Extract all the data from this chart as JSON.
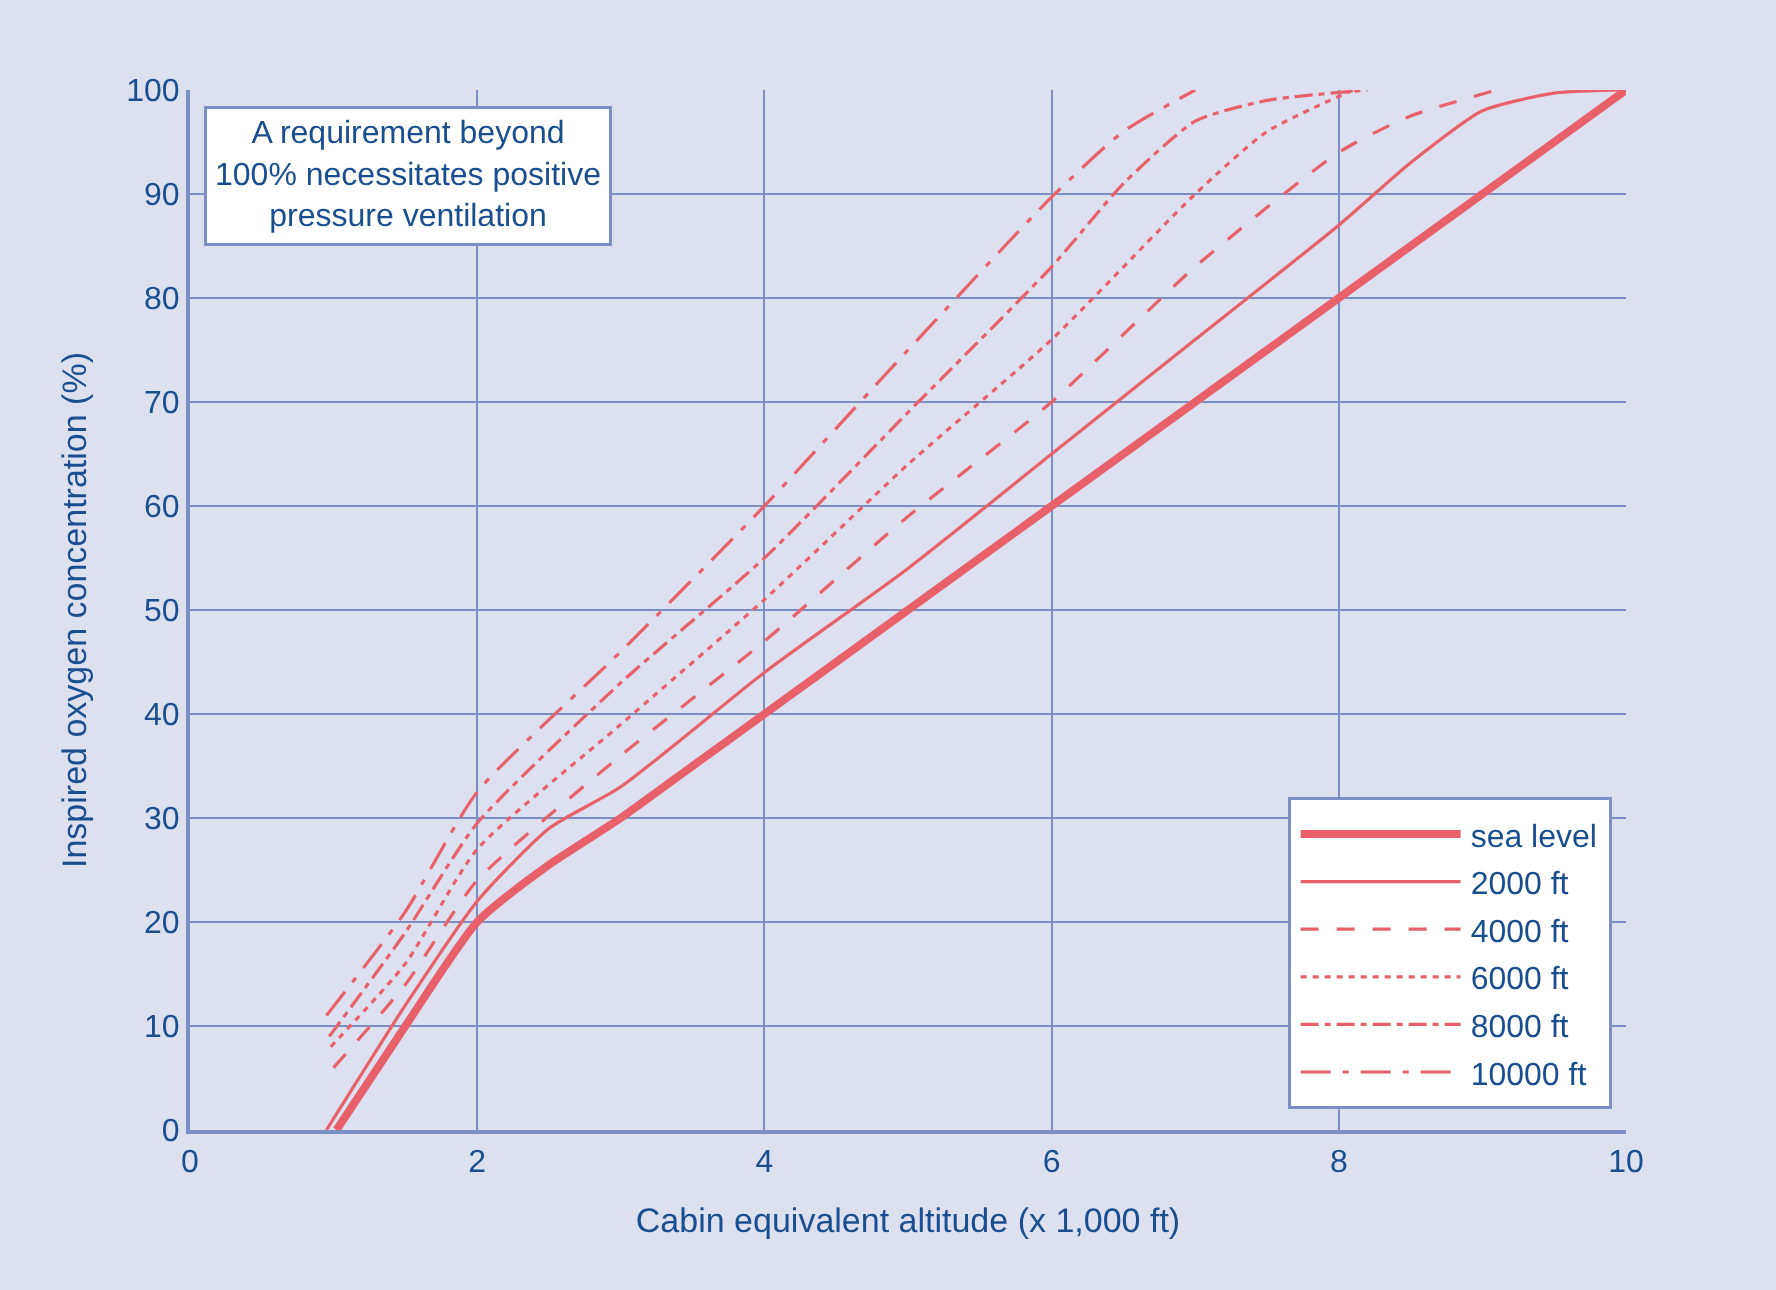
{
  "chart_data": {
    "type": "line",
    "xlabel": "Cabin equivalent altitude (x 1,000 ft)",
    "ylabel": "Inspired oxygen concentration (%)",
    "xlim": [
      0,
      10
    ],
    "xticks": [
      0,
      2,
      4,
      6,
      8,
      10
    ],
    "ylim": [
      0,
      100
    ],
    "yticks": [
      0,
      10,
      20,
      30,
      40,
      50,
      60,
      70,
      80,
      90,
      100
    ],
    "grid": true,
    "legend": "bottom right",
    "marker": "none",
    "annotations": [
      "A requirement beyond\n100% necessitates positive\npressure ventilation"
    ],
    "series": [
      {
        "name": "sea level",
        "color": "#e8606a",
        "line_style": "solid",
        "x": [
          1.02,
          1.5,
          2,
          2.5,
          3,
          3.5,
          4,
          5,
          6,
          7,
          8,
          9,
          10
        ],
        "values": [
          0,
          10,
          20,
          25.5,
          30,
          35,
          40,
          50,
          60,
          70,
          80,
          90,
          100
        ]
      },
      {
        "name": "2000 ft",
        "color": "#e8606a",
        "line_style": "solid",
        "x": [
          0.95,
          1.5,
          2,
          2.5,
          3,
          4,
          5,
          6,
          7,
          8,
          8.5,
          9,
          9.5,
          10
        ],
        "values": [
          0,
          12,
          22,
          29,
          33,
          44,
          54,
          65,
          76,
          87,
          93,
          98,
          99.7,
          100
        ]
      },
      {
        "name": "4000 ft",
        "color": "#e8606a",
        "line_style": "dashed",
        "x": [
          1.0,
          1.5,
          2,
          3,
          4,
          5,
          6,
          7,
          8,
          8.5,
          9.1
        ],
        "values": [
          6,
          14,
          24,
          36,
          47,
          59,
          70,
          83,
          94,
          97.5,
          100
        ]
      },
      {
        "name": "6000 ft",
        "color": "#e8606a",
        "line_style": "dotted",
        "x": [
          0.98,
          1.5,
          2,
          3,
          4,
          5,
          6,
          7,
          7.5,
          8.1
        ],
        "values": [
          8,
          16,
          27,
          39,
          51,
          64,
          76,
          90,
          96,
          100
        ]
      },
      {
        "name": "8000 ft",
        "color": "#e8606a",
        "line_style": "dashdot",
        "x": [
          0.97,
          1.5,
          2,
          3,
          4,
          5,
          6,
          6.5,
          7,
          7.5,
          8.2
        ],
        "values": [
          9,
          19,
          29.5,
          43,
          55,
          69,
          83,
          91,
          97,
          99,
          100
        ]
      },
      {
        "name": "10000 ft",
        "color": "#e8606a",
        "line_style": "longdashdot",
        "x": [
          0.95,
          1.5,
          2,
          3,
          4,
          5,
          6,
          6.5,
          7
        ],
        "values": [
          11,
          21,
          32.5,
          46,
          60,
          75,
          89.7,
          96,
          100
        ]
      }
    ]
  }
}
